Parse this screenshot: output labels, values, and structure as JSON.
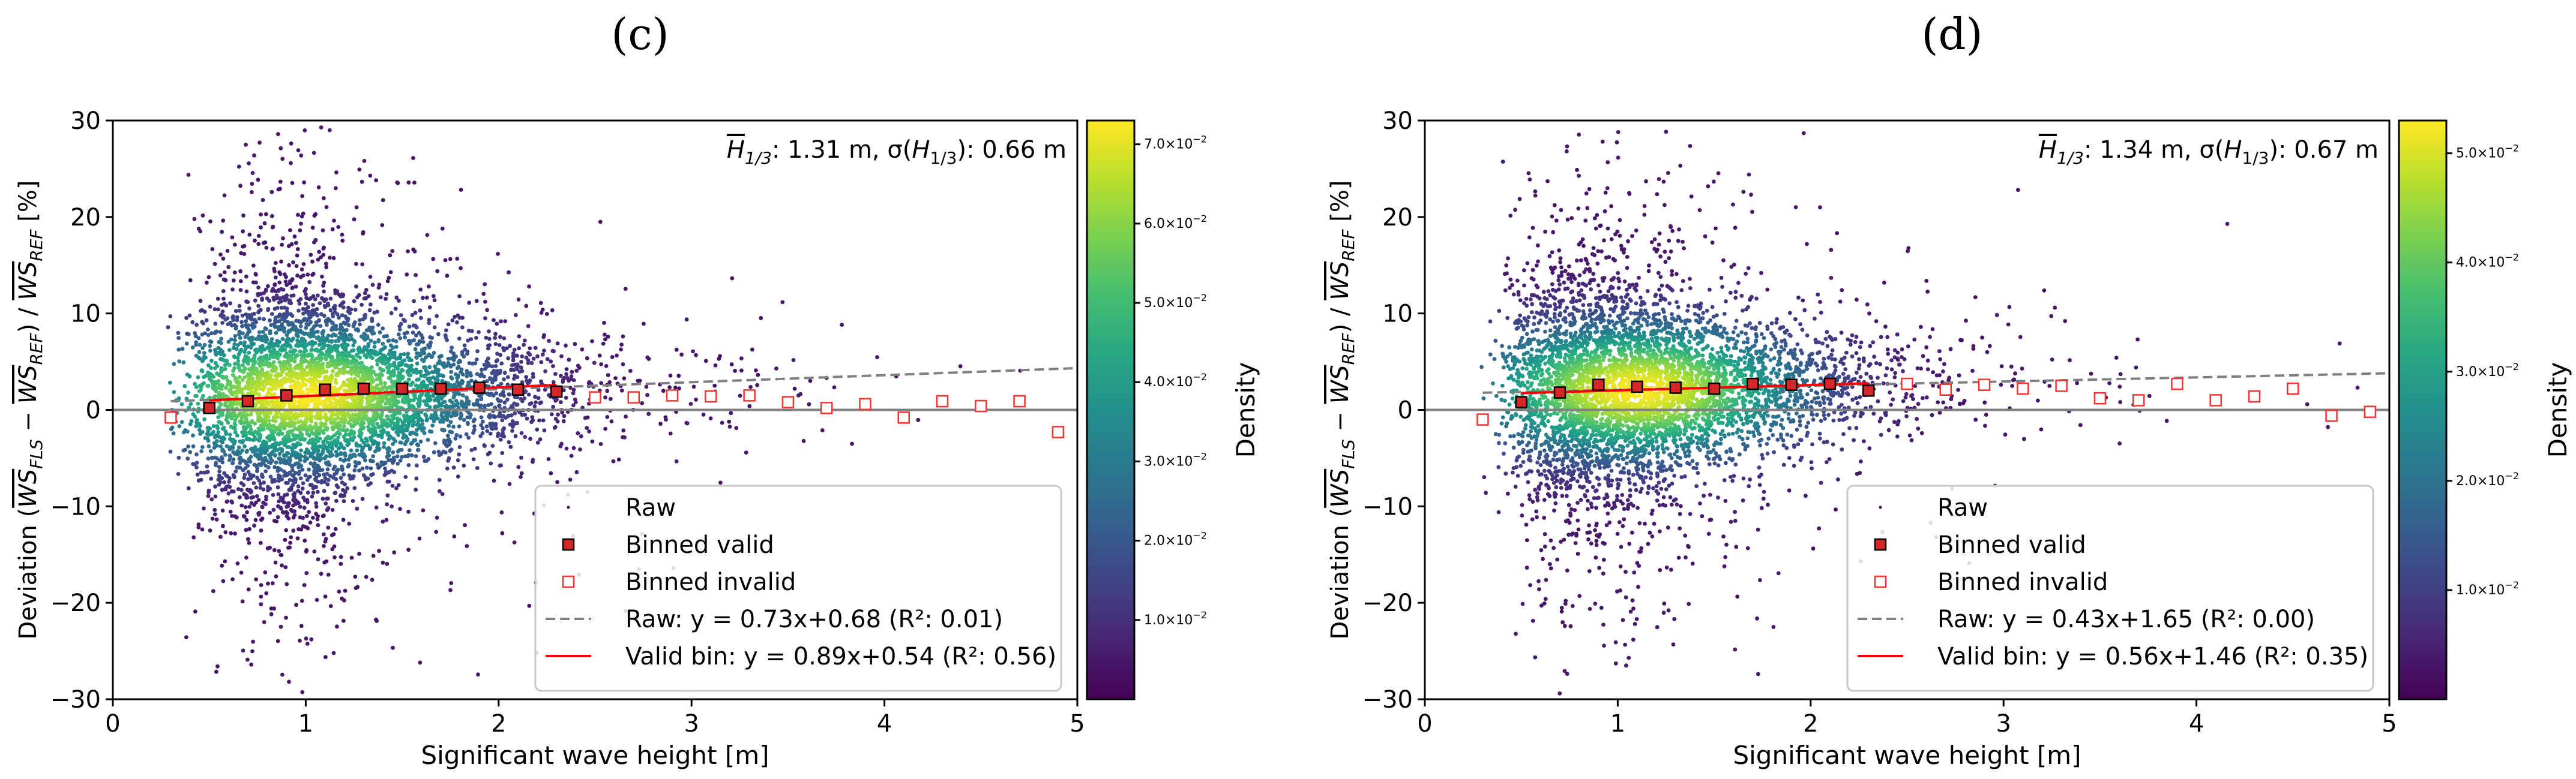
{
  "chart_data": [
    {
      "panel_label": "(c)",
      "type": "scatter",
      "xlabel": "Significant wave height [m]",
      "ylabel": {
        "prefix": "Deviation (",
        "a": "WS",
        "a_sub": "FLS",
        "minus": " − ",
        "b": "WS",
        "b_sub": "REF",
        "slash": ") / ",
        "c": "WS",
        "c_sub": "REF",
        "suffix": " [%]"
      },
      "xlim": [
        0,
        5
      ],
      "ylim": [
        -30,
        30
      ],
      "xticks": [
        "0",
        "1",
        "2",
        "3",
        "4",
        "5"
      ],
      "yticks": [
        "−30",
        "−20",
        "−10",
        "0",
        "10",
        "20",
        "30"
      ],
      "annotation": {
        "h": "H",
        "h_sub": "1/3",
        "mean_text": ": 1.31 m, σ(",
        "sd_text": "): 0.66 m"
      },
      "colorbar": {
        "label": "Density",
        "min": 0.0,
        "max": 0.073,
        "ticks": [
          {
            "v": 0.01,
            "m": "1.0",
            "e": "−2"
          },
          {
            "v": 0.02,
            "m": "2.0",
            "e": "−2"
          },
          {
            "v": 0.03,
            "m": "3.0",
            "e": "−2"
          },
          {
            "v": 0.04,
            "m": "4.0",
            "e": "−2"
          },
          {
            "v": 0.05,
            "m": "5.0",
            "e": "−2"
          },
          {
            "v": 0.06,
            "m": "6.0",
            "e": "−2"
          },
          {
            "v": 0.07,
            "m": "7.0",
            "e": "−2"
          }
        ]
      },
      "raw_fit": {
        "slope": 0.73,
        "intercept": 0.68,
        "r2": 0.01,
        "x": [
          0.3,
          5
        ]
      },
      "valid_fit": {
        "slope": 0.89,
        "intercept": 0.54,
        "r2": 0.56,
        "x": [
          0.5,
          2.3
        ]
      },
      "binned_valid": [
        [
          0.5,
          0.2
        ],
        [
          0.7,
          0.9
        ],
        [
          0.9,
          1.5
        ],
        [
          1.1,
          2.1
        ],
        [
          1.3,
          2.2
        ],
        [
          1.5,
          2.2
        ],
        [
          1.7,
          2.2
        ],
        [
          1.9,
          2.3
        ],
        [
          2.1,
          2.1
        ],
        [
          2.3,
          1.9
        ]
      ],
      "binned_invalid": [
        [
          0.3,
          -0.8
        ],
        [
          2.5,
          1.3
        ],
        [
          2.7,
          1.3
        ],
        [
          2.9,
          1.5
        ],
        [
          3.1,
          1.4
        ],
        [
          3.3,
          1.5
        ],
        [
          3.5,
          0.8
        ],
        [
          3.7,
          0.2
        ],
        [
          3.9,
          0.6
        ],
        [
          4.1,
          -0.8
        ],
        [
          4.3,
          0.9
        ],
        [
          4.5,
          0.4
        ],
        [
          4.7,
          0.9
        ],
        [
          4.9,
          -2.3
        ]
      ],
      "legend": {
        "raw": "Raw",
        "binned_valid": "Binned valid",
        "binned_invalid": "Binned invalid",
        "raw_fit": "Raw: y = 0.73x+0.68 (R²: 0.01)",
        "valid_fit": "Valid bin: y = 0.89x+0.54 (R²: 0.56)"
      },
      "raw_scatter": {
        "n": 5200,
        "center_y": 1.5,
        "spread_y": 6,
        "peak_x": 1.0
      }
    },
    {
      "panel_label": "(d)",
      "type": "scatter",
      "xlabel": "Significant wave height [m]",
      "ylabel": {
        "prefix": "Deviation (",
        "a": "WS",
        "a_sub": "FLS",
        "minus": " − ",
        "b": "WS",
        "b_sub": "REF",
        "slash": ") / ",
        "c": "WS",
        "c_sub": "REF",
        "suffix": " [%]"
      },
      "xlim": [
        0,
        5
      ],
      "ylim": [
        -30,
        30
      ],
      "xticks": [
        "0",
        "1",
        "2",
        "3",
        "4",
        "5"
      ],
      "yticks": [
        "−30",
        "−20",
        "−10",
        "0",
        "10",
        "20",
        "30"
      ],
      "annotation": {
        "h": "H",
        "h_sub": "1/3",
        "mean_text": ": 1.34 m, σ(",
        "sd_text": "): 0.67 m"
      },
      "colorbar": {
        "label": "Density",
        "min": 0.0,
        "max": 0.053,
        "ticks": [
          {
            "v": 0.01,
            "m": "1.0",
            "e": "−2"
          },
          {
            "v": 0.02,
            "m": "2.0",
            "e": "−2"
          },
          {
            "v": 0.03,
            "m": "3.0",
            "e": "−2"
          },
          {
            "v": 0.04,
            "m": "4.0",
            "e": "−2"
          },
          {
            "v": 0.05,
            "m": "5.0",
            "e": "−2"
          }
        ]
      },
      "raw_fit": {
        "slope": 0.43,
        "intercept": 1.65,
        "r2": 0.0,
        "x": [
          0.3,
          5
        ]
      },
      "valid_fit": {
        "slope": 0.56,
        "intercept": 1.46,
        "r2": 0.35,
        "x": [
          0.5,
          2.3
        ]
      },
      "binned_valid": [
        [
          0.5,
          0.8
        ],
        [
          0.7,
          1.8
        ],
        [
          0.9,
          2.6
        ],
        [
          1.1,
          2.4
        ],
        [
          1.3,
          2.3
        ],
        [
          1.5,
          2.2
        ],
        [
          1.7,
          2.7
        ],
        [
          1.9,
          2.6
        ],
        [
          2.1,
          2.7
        ],
        [
          2.3,
          2.0
        ]
      ],
      "binned_invalid": [
        [
          0.3,
          -1.0
        ],
        [
          2.5,
          2.7
        ],
        [
          2.7,
          2.1
        ],
        [
          2.9,
          2.6
        ],
        [
          3.1,
          2.2
        ],
        [
          3.3,
          2.5
        ],
        [
          3.5,
          1.2
        ],
        [
          3.7,
          1.0
        ],
        [
          3.9,
          2.7
        ],
        [
          4.1,
          1.0
        ],
        [
          4.3,
          1.4
        ],
        [
          4.5,
          2.2
        ],
        [
          4.7,
          -0.6
        ],
        [
          4.9,
          -0.2
        ]
      ],
      "legend": {
        "raw": "Raw",
        "binned_valid": "Binned valid",
        "binned_invalid": "Binned invalid",
        "raw_fit": "Raw: y = 0.43x+1.65 (R²: 0.00)",
        "valid_fit": "Valid bin: y = 0.56x+1.46 (R²: 0.35)"
      },
      "raw_scatter": {
        "n": 5200,
        "center_y": 2.0,
        "spread_y": 6,
        "peak_x": 1.1
      }
    }
  ]
}
